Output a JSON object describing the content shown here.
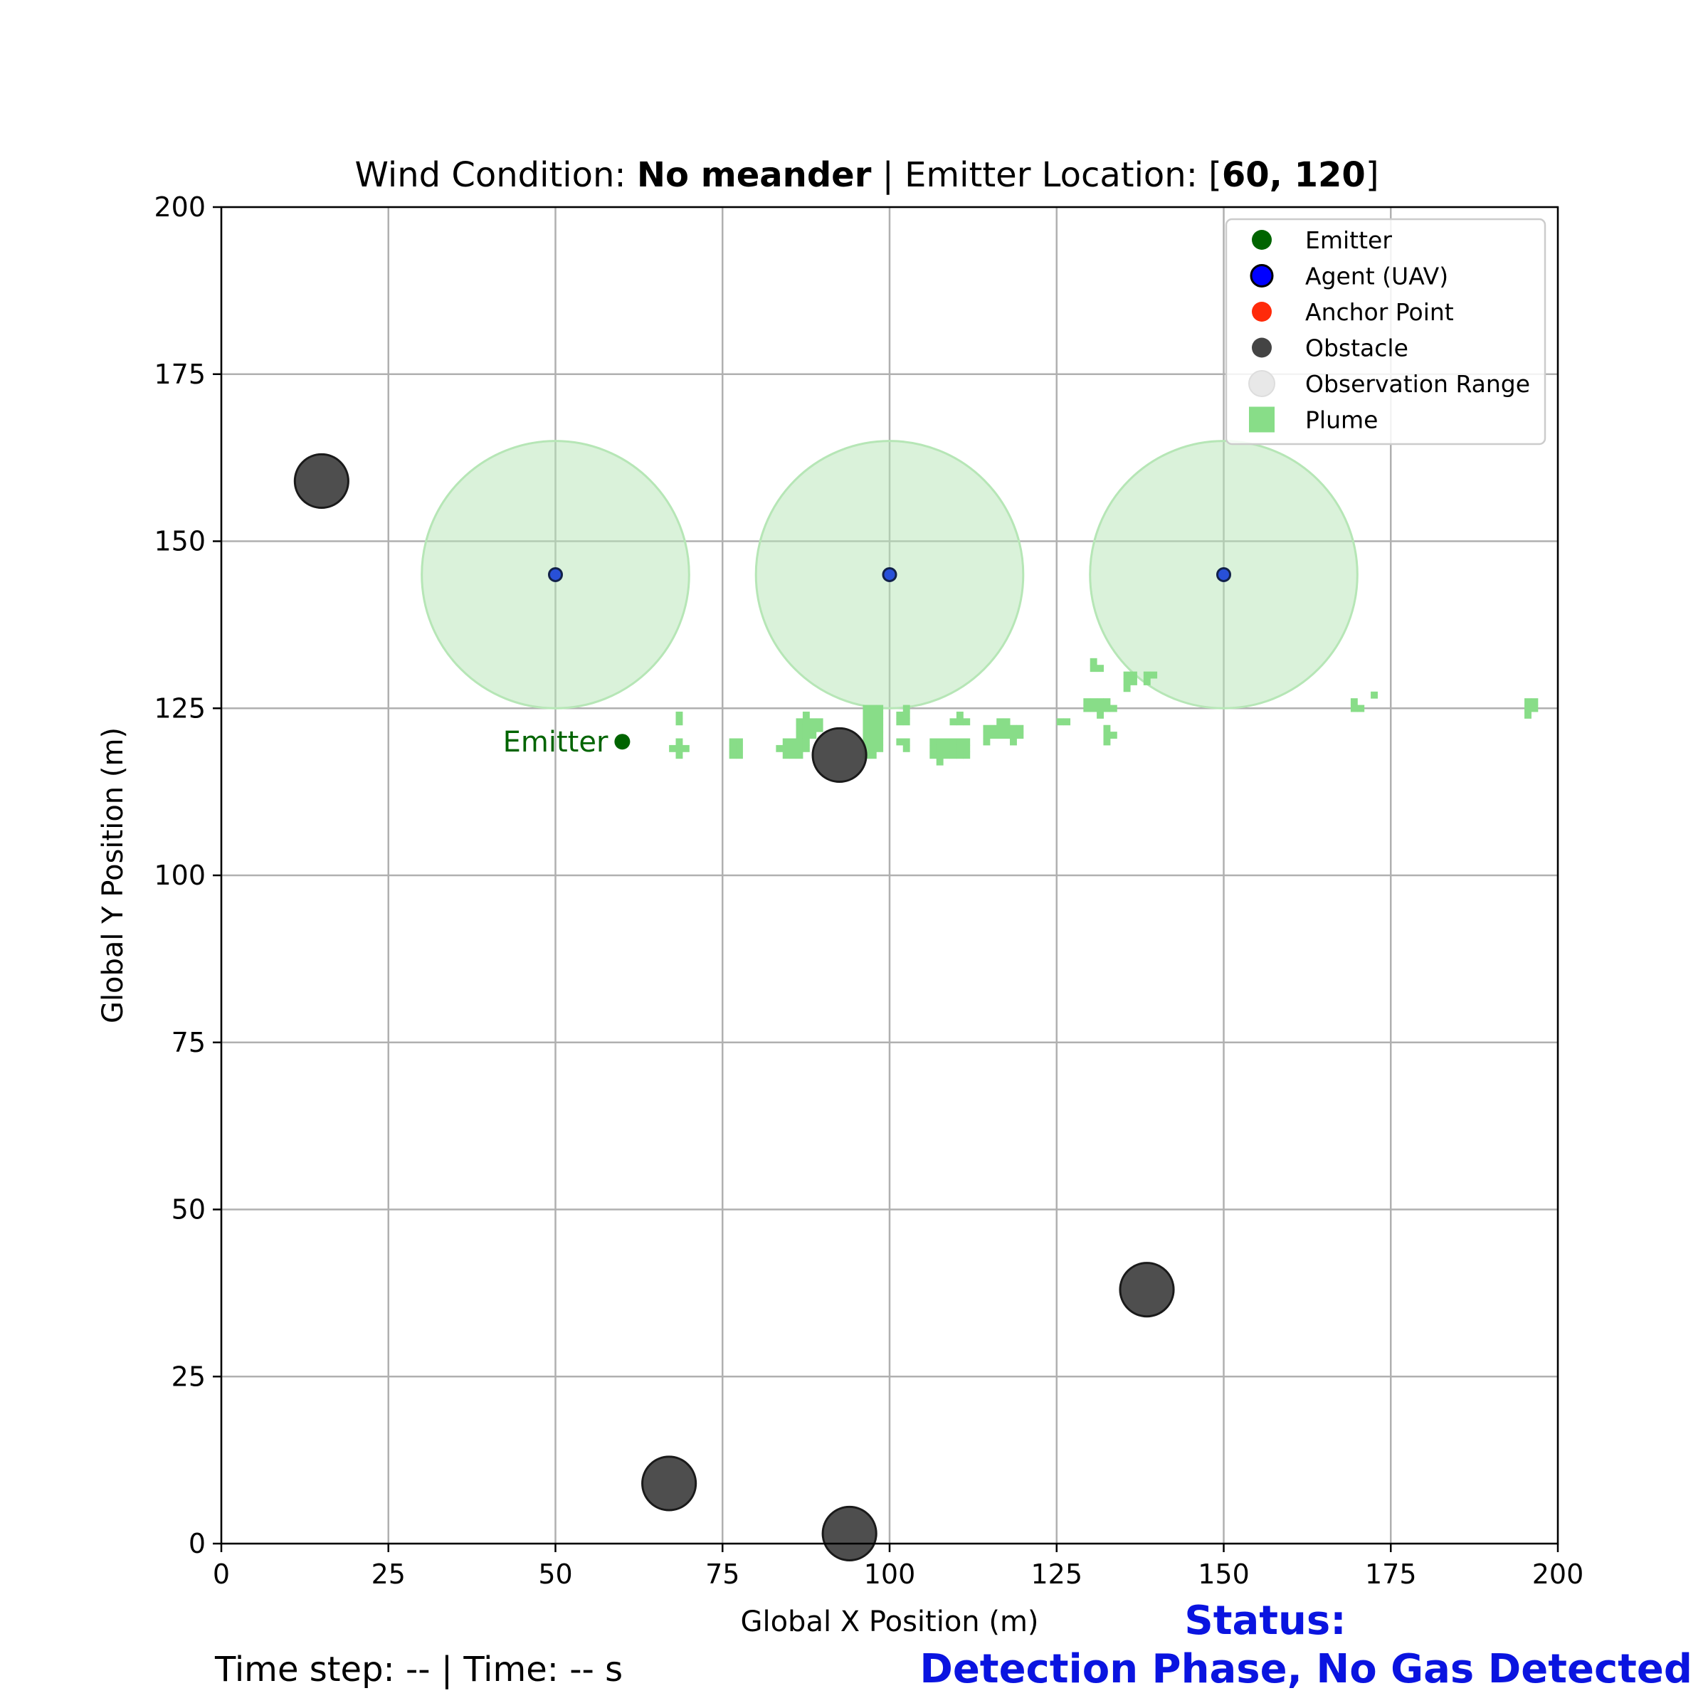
{
  "chart_data": {
    "type": "scatter",
    "title": {
      "prefix": "Wind Condition: ",
      "condition": "No meander",
      "separator": " | Emitter Location: [",
      "emitter_x": "60",
      "comma": ", ",
      "emitter_y": "120",
      "suffix": "]"
    },
    "xlabel": "Global X Position (m)",
    "ylabel": "Global Y Position (m)",
    "xlim": [
      0,
      200
    ],
    "ylim": [
      0,
      200
    ],
    "xticks": [
      0,
      25,
      50,
      75,
      100,
      125,
      150,
      175,
      200
    ],
    "yticks": [
      0,
      25,
      50,
      75,
      100,
      125,
      150,
      175,
      200
    ],
    "grid": true,
    "legend_position": "top-right",
    "legend": [
      {
        "label": "Emitter",
        "marker": "dot",
        "color": "#006400"
      },
      {
        "label": "Agent (UAV)",
        "marker": "ring",
        "color": "#0000ff"
      },
      {
        "label": "Anchor Point",
        "marker": "dot",
        "color": "#ff2a0a"
      },
      {
        "label": "Obstacle",
        "marker": "dot",
        "color": "#444444"
      },
      {
        "label": "Observation Range",
        "marker": "faint",
        "color": "#e8e8e8"
      },
      {
        "label": "Plume",
        "marker": "square",
        "color": "#88dd88"
      }
    ],
    "emitter": {
      "x": 60,
      "y": 120,
      "label": "Emitter",
      "color": "#006400"
    },
    "agents": [
      {
        "x": 50,
        "y": 145
      },
      {
        "x": 100,
        "y": 145
      },
      {
        "x": 150,
        "y": 145
      }
    ],
    "observation_radius": 20,
    "obstacles": [
      {
        "x": 15,
        "y": 159,
        "r": 4
      },
      {
        "x": 92.5,
        "y": 118,
        "r": 4
      },
      {
        "x": 138.5,
        "y": 38,
        "r": 4
      },
      {
        "x": 67,
        "y": 9,
        "r": 4
      },
      {
        "x": 94,
        "y": 1.5,
        "r": 4
      }
    ],
    "plume_cells": [
      [
        68.5,
        124
      ],
      [
        68.5,
        123
      ],
      [
        68.5,
        120
      ],
      [
        68.5,
        119
      ],
      [
        68.5,
        118
      ],
      [
        69.5,
        119
      ],
      [
        67.5,
        119
      ],
      [
        76.5,
        120
      ],
      [
        76.5,
        119
      ],
      [
        76.5,
        118
      ],
      [
        77.5,
        120
      ],
      [
        77.5,
        119
      ],
      [
        77.5,
        118
      ],
      [
        83.5,
        119
      ],
      [
        84.5,
        120
      ],
      [
        84.5,
        119
      ],
      [
        84.5,
        118
      ],
      [
        85.5,
        120
      ],
      [
        85.5,
        119
      ],
      [
        85.5,
        118
      ],
      [
        86.5,
        123
      ],
      [
        86.5,
        122
      ],
      [
        86.5,
        121
      ],
      [
        86.5,
        120
      ],
      [
        86.5,
        119
      ],
      [
        86.5,
        118
      ],
      [
        87.5,
        124
      ],
      [
        87.5,
        123
      ],
      [
        87.5,
        122
      ],
      [
        87.5,
        121
      ],
      [
        87.5,
        120
      ],
      [
        87.5,
        119
      ],
      [
        88.5,
        123
      ],
      [
        88.5,
        122
      ],
      [
        88.5,
        121
      ],
      [
        89.5,
        123
      ],
      [
        89.5,
        122
      ],
      [
        96.5,
        125
      ],
      [
        96.5,
        124
      ],
      [
        96.5,
        123
      ],
      [
        96.5,
        122
      ],
      [
        96.5,
        121
      ],
      [
        96.5,
        120
      ],
      [
        96.5,
        119
      ],
      [
        96.5,
        118
      ],
      [
        97.5,
        125
      ],
      [
        97.5,
        124
      ],
      [
        97.5,
        123
      ],
      [
        97.5,
        122
      ],
      [
        97.5,
        121
      ],
      [
        97.5,
        120
      ],
      [
        97.5,
        119
      ],
      [
        97.5,
        118
      ],
      [
        98.5,
        125
      ],
      [
        98.5,
        124
      ],
      [
        98.5,
        123
      ],
      [
        98.5,
        122
      ],
      [
        98.5,
        121
      ],
      [
        98.5,
        120
      ],
      [
        98.5,
        119
      ],
      [
        101.5,
        124
      ],
      [
        101.5,
        123
      ],
      [
        102.5,
        125
      ],
      [
        102.5,
        124
      ],
      [
        102.5,
        123
      ],
      [
        102.5,
        120
      ],
      [
        102.5,
        119
      ],
      [
        101.5,
        120
      ],
      [
        106.5,
        120
      ],
      [
        106.5,
        119
      ],
      [
        106.5,
        118
      ],
      [
        107.5,
        120
      ],
      [
        107.5,
        119
      ],
      [
        107.5,
        118
      ],
      [
        107.5,
        117
      ],
      [
        108.5,
        120
      ],
      [
        108.5,
        119
      ],
      [
        108.5,
        118
      ],
      [
        109.5,
        120
      ],
      [
        109.5,
        119
      ],
      [
        109.5,
        118
      ],
      [
        110.5,
        120
      ],
      [
        110.5,
        119
      ],
      [
        110.5,
        118
      ],
      [
        111.5,
        120
      ],
      [
        111.5,
        119
      ],
      [
        111.5,
        118
      ],
      [
        110.5,
        124
      ],
      [
        110.5,
        123
      ],
      [
        111.5,
        123
      ],
      [
        109.5,
        123
      ],
      [
        114.5,
        122
      ],
      [
        114.5,
        121
      ],
      [
        114.5,
        120
      ],
      [
        115.5,
        122
      ],
      [
        115.5,
        121
      ],
      [
        116.5,
        123
      ],
      [
        116.5,
        122
      ],
      [
        116.5,
        121
      ],
      [
        117.5,
        123
      ],
      [
        117.5,
        122
      ],
      [
        117.5,
        121
      ],
      [
        118.5,
        122
      ],
      [
        118.5,
        121
      ],
      [
        118.5,
        120
      ],
      [
        119.5,
        122
      ],
      [
        119.5,
        121
      ],
      [
        125.5,
        123
      ],
      [
        126.5,
        123
      ],
      [
        130.5,
        132
      ],
      [
        130.5,
        131
      ],
      [
        131.5,
        131
      ],
      [
        129.5,
        126
      ],
      [
        129.5,
        125
      ],
      [
        130.5,
        126
      ],
      [
        130.5,
        125
      ],
      [
        131.5,
        126
      ],
      [
        131.5,
        125
      ],
      [
        131.5,
        124
      ],
      [
        132.5,
        126
      ],
      [
        132.5,
        125
      ],
      [
        133.5,
        125
      ],
      [
        132.5,
        122
      ],
      [
        132.5,
        121
      ],
      [
        132.5,
        120
      ],
      [
        133.5,
        121
      ],
      [
        135.5,
        130
      ],
      [
        135.5,
        129
      ],
      [
        135.5,
        128
      ],
      [
        136.5,
        130
      ],
      [
        136.5,
        129
      ],
      [
        138.5,
        130
      ],
      [
        138.5,
        129
      ],
      [
        139.5,
        130
      ],
      [
        169.5,
        126
      ],
      [
        169.5,
        125
      ],
      [
        170.5,
        125
      ],
      [
        172.5,
        127
      ],
      [
        195.5,
        126
      ],
      [
        195.5,
        125
      ],
      [
        195.5,
        124
      ],
      [
        196.5,
        126
      ],
      [
        196.5,
        125
      ]
    ],
    "colors": {
      "plume": "#88dd88",
      "observation": "#b6e6b6",
      "agent_fill": "#2850d8",
      "agent_edge": "#13224a",
      "obstacle": "#444444",
      "grid": "#b0b0b0",
      "status": "#0a14e0"
    }
  },
  "footer": {
    "time_text": "Time step: -- | Time: -- s"
  },
  "status": {
    "line1": "Status:",
    "line2": "Detection Phase, No Gas Detected"
  }
}
